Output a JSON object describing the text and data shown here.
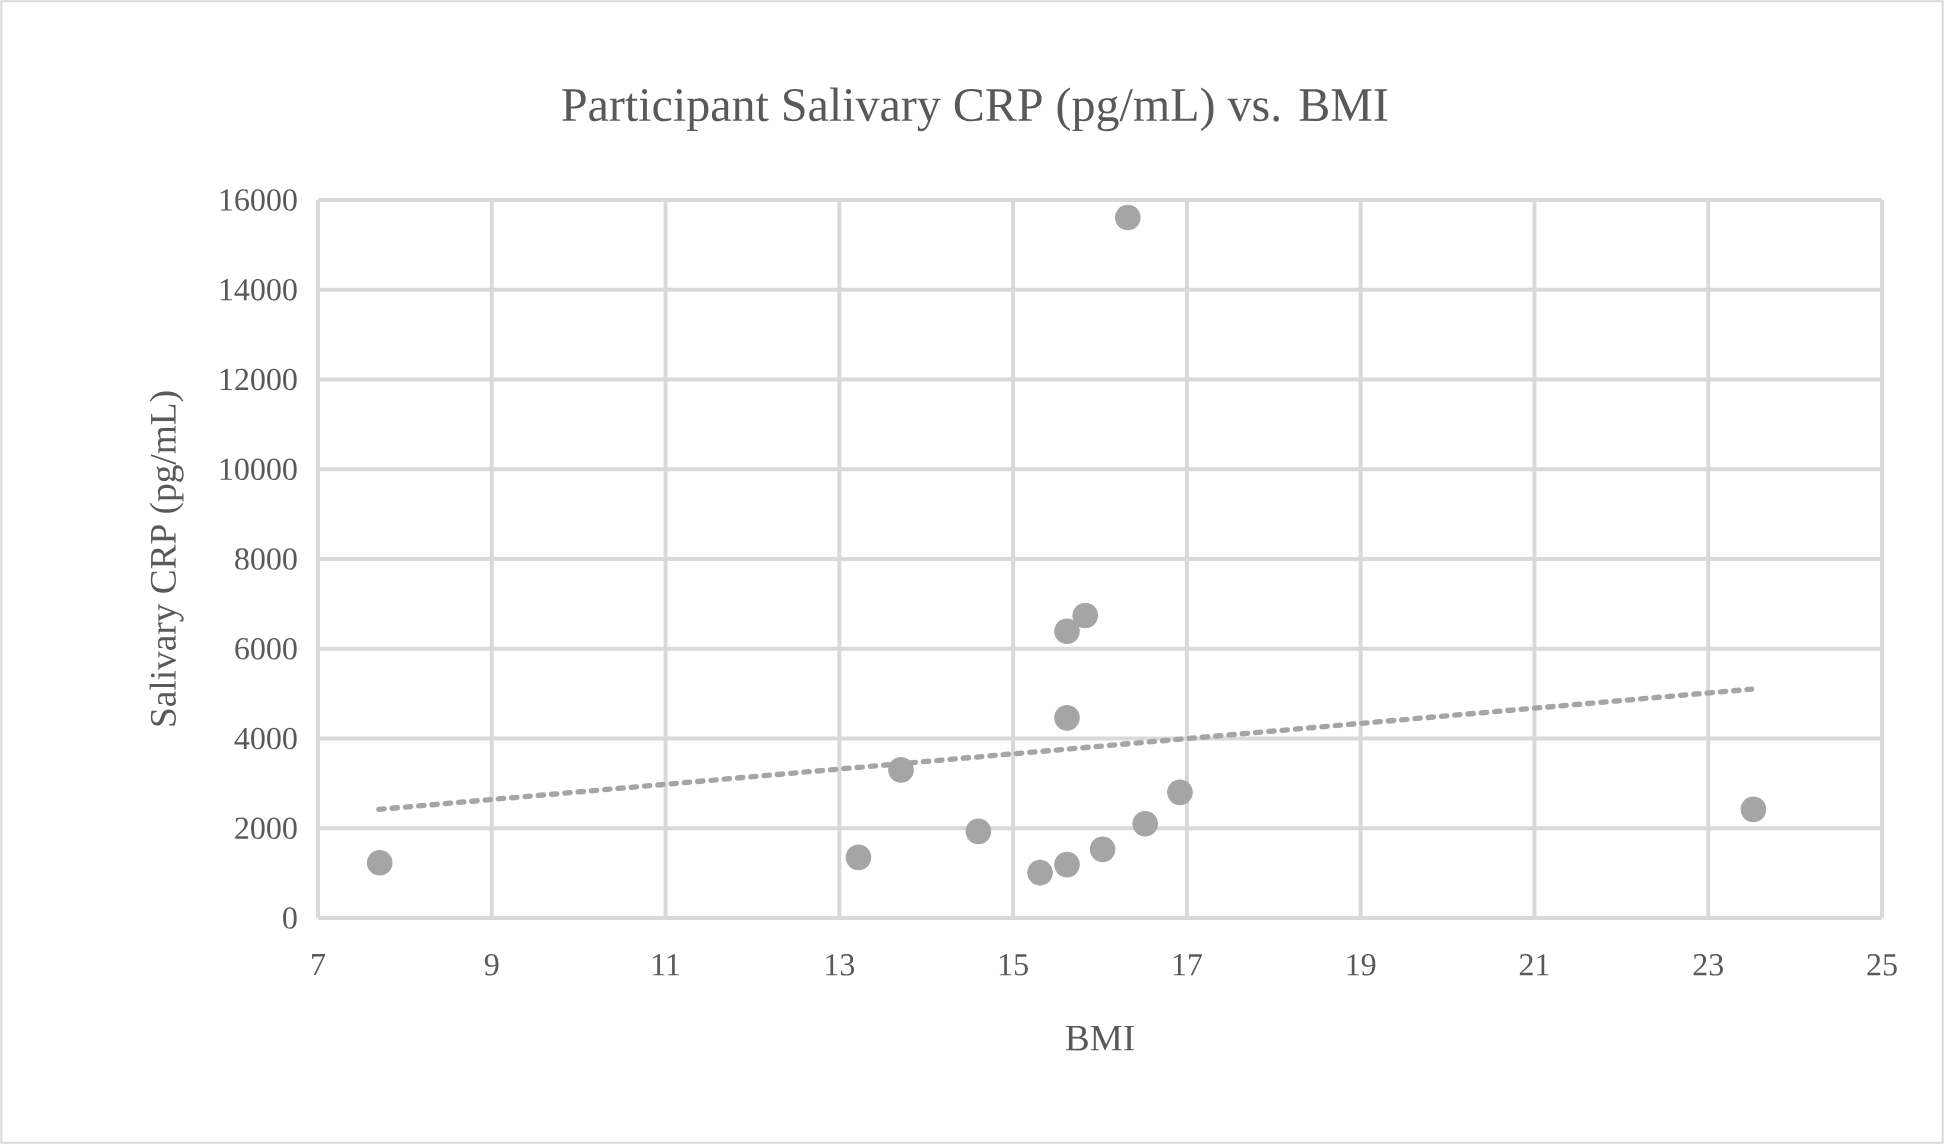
{
  "chart_data": {
    "type": "scatter",
    "title": "Participant Salivary CRP (pg/mL) vs. BMI",
    "xlabel": "BMI",
    "ylabel": "Salivary CRP (pg/mL)",
    "xlim": [
      7,
      25
    ],
    "ylim": [
      0,
      16000
    ],
    "xticks": [
      7,
      9,
      11,
      13,
      15,
      17,
      19,
      21,
      23,
      25
    ],
    "yticks": [
      0,
      2000,
      4000,
      6000,
      8000,
      10000,
      12000,
      14000,
      16000
    ],
    "grid": true,
    "series": [
      {
        "type": "scatter",
        "color": "#a5a5a5",
        "marker": "circle",
        "x": [
          7.71,
          13.22,
          13.71,
          14.6,
          15.31,
          15.62,
          16.03,
          16.52,
          16.92,
          15.62,
          15.62,
          15.83,
          16.32,
          23.52
        ],
        "values": [
          1230,
          1350,
          3300,
          1930,
          1010,
          1190,
          1530,
          2100,
          2800,
          4460,
          6390,
          6740,
          15610,
          2420
        ]
      },
      {
        "type": "line",
        "color": "#a5a5a5",
        "line_style": "dotted",
        "marker": "none",
        "x": [
          7.7,
          23.5
        ],
        "values": [
          2420,
          5100
        ]
      }
    ]
  }
}
